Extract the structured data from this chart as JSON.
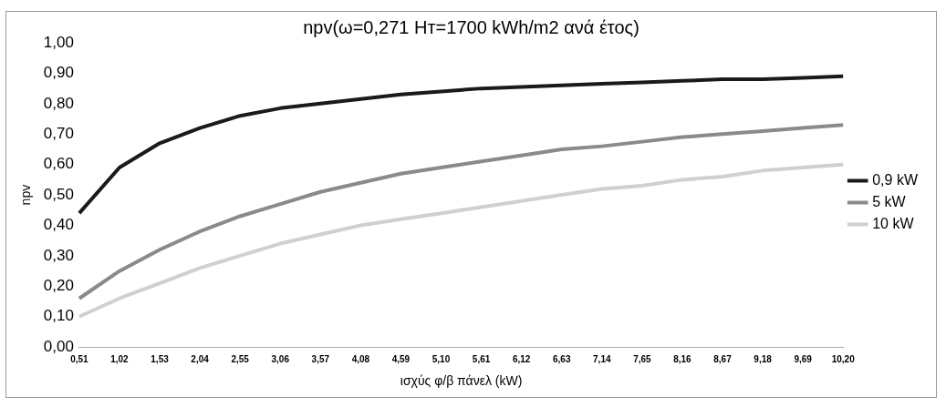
{
  "chart_data": {
    "type": "line",
    "title": "npv(ω=0,271 Hт=1700 kWh/m2 ανά έτος)",
    "xlabel": "ισχύς φ/β πάνελ (kW)",
    "ylabel": "npv",
    "categories": [
      "0,51",
      "1,02",
      "1,53",
      "2,04",
      "2,55",
      "3,06",
      "3,57",
      "4,08",
      "4,59",
      "5,10",
      "5,61",
      "6,12",
      "6,63",
      "7,14",
      "7,65",
      "8,16",
      "8,67",
      "9,18",
      "9,69",
      "10,20"
    ],
    "series": [
      {
        "name": "0,9 kW",
        "color": "#1a1a1a",
        "values": [
          0.44,
          0.59,
          0.67,
          0.72,
          0.76,
          0.785,
          0.8,
          0.815,
          0.83,
          0.84,
          0.85,
          0.855,
          0.86,
          0.865,
          0.87,
          0.875,
          0.88,
          0.88,
          0.885,
          0.89
        ]
      },
      {
        "name": "5 kW",
        "color": "#8a8a8a",
        "values": [
          0.16,
          0.25,
          0.32,
          0.38,
          0.43,
          0.47,
          0.51,
          0.54,
          0.57,
          0.59,
          0.61,
          0.63,
          0.65,
          0.66,
          0.675,
          0.69,
          0.7,
          0.71,
          0.72,
          0.73
        ]
      },
      {
        "name": "10 kW",
        "color": "#d0d0d0",
        "values": [
          0.1,
          0.16,
          0.21,
          0.26,
          0.3,
          0.34,
          0.37,
          0.4,
          0.42,
          0.44,
          0.46,
          0.48,
          0.5,
          0.52,
          0.53,
          0.55,
          0.56,
          0.58,
          0.59,
          0.6
        ]
      }
    ],
    "ylim": [
      0,
      1
    ],
    "yticks": [
      {
        "value": 0,
        "label": "0,00"
      },
      {
        "value": 0.1,
        "label": "0,10"
      },
      {
        "value": 0.2,
        "label": "0,20"
      },
      {
        "value": 0.3,
        "label": "0,30"
      },
      {
        "value": 0.4,
        "label": "0,40"
      },
      {
        "value": 0.5,
        "label": "0,50"
      },
      {
        "value": 0.6,
        "label": "0,60"
      },
      {
        "value": 0.7,
        "label": "0,70"
      },
      {
        "value": 0.8,
        "label": "0,80"
      },
      {
        "value": 0.9,
        "label": "0,90"
      },
      {
        "value": 1,
        "label": "1,00"
      }
    ],
    "grid": false,
    "legend": "right",
    "marker": "none",
    "line_style": "solid"
  }
}
